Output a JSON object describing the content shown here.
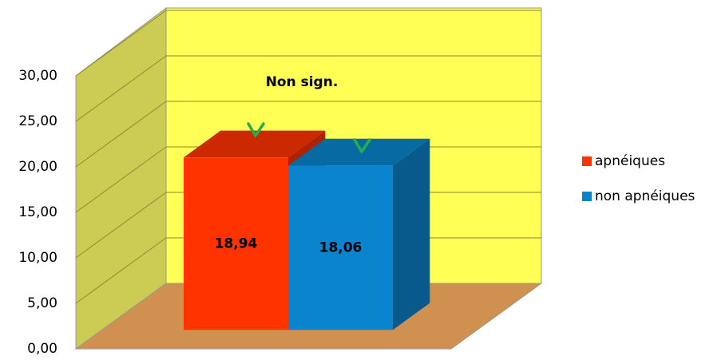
{
  "chart_data": {
    "type": "bar3d",
    "annotation": "Non sign.",
    "series": [
      {
        "name": "apnéiques",
        "color": "#ff3300",
        "values": [
          18.94
        ],
        "value_labels": [
          "18,94"
        ]
      },
      {
        "name": "non apnéiques",
        "color": "#0a84cc",
        "values": [
          18.06
        ],
        "value_labels": [
          "18,06"
        ]
      }
    ],
    "ylim": [
      0,
      30
    ],
    "yticks": [
      {
        "value": 0,
        "label": "0,00"
      },
      {
        "value": 5,
        "label": "5,00"
      },
      {
        "value": 10,
        "label": "10,00"
      },
      {
        "value": 15,
        "label": "15,00"
      },
      {
        "value": 20,
        "label": "20,00"
      },
      {
        "value": 25,
        "label": "25,00"
      },
      {
        "value": 30,
        "label": "30,00"
      }
    ],
    "grid": true
  }
}
